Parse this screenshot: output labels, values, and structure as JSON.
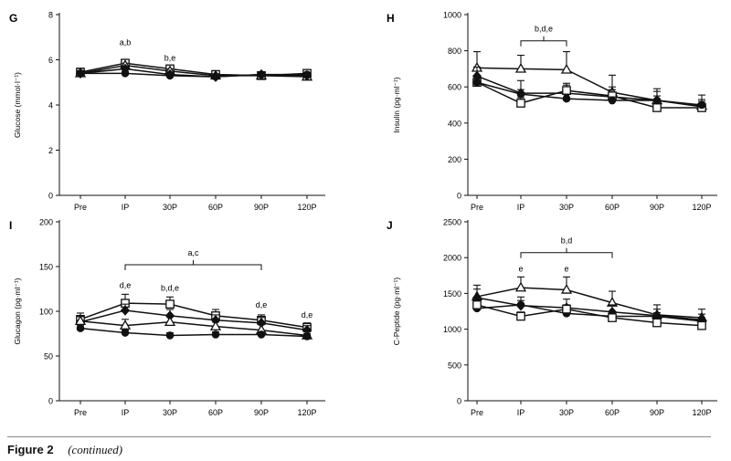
{
  "figure": {
    "label": "Figure 2",
    "note": "(continued)"
  },
  "chart_data": [
    {
      "panel": "G",
      "type": "line",
      "ylabel": "Glucose (mmol·l⁻¹)",
      "ylim": [
        0,
        8
      ],
      "yticks": [
        0,
        2,
        4,
        6,
        8
      ],
      "categories": [
        "Pre",
        "IP",
        "30P",
        "60P",
        "90P",
        "120P"
      ],
      "series": [
        {
          "marker": "square-open",
          "values": [
            5.45,
            5.85,
            5.6,
            5.35,
            5.3,
            5.4
          ],
          "errors": [
            0.18,
            0.15,
            0.12,
            0.1,
            0.08,
            0.1
          ]
        },
        {
          "marker": "triangle-open",
          "values": [
            5.4,
            5.75,
            5.5,
            5.3,
            5.3,
            5.25
          ],
          "errors": [
            0.12,
            0.1,
            0.1,
            0.08,
            0.08,
            0.08
          ]
        },
        {
          "marker": "diamond-filled",
          "values": [
            5.4,
            5.6,
            5.35,
            5.25,
            5.35,
            5.3
          ],
          "errors": [
            0.1,
            0.1,
            0.08,
            0.08,
            0.06,
            0.08
          ]
        },
        {
          "marker": "circle-filled",
          "values": [
            5.4,
            5.4,
            5.3,
            5.25,
            5.35,
            5.35
          ],
          "errors": [
            0.08,
            0.08,
            0.06,
            0.06,
            0.06,
            0.06
          ]
        }
      ],
      "annotations": [
        {
          "text": "a,b",
          "x": "IP",
          "y": 6.65
        },
        {
          "text": "b,e",
          "x": "30P",
          "y": 5.95
        }
      ],
      "brackets": []
    },
    {
      "panel": "H",
      "type": "line",
      "ylabel": "Insulin (pg·ml⁻¹)",
      "ylim": [
        0,
        1000
      ],
      "yticks": [
        0,
        200,
        400,
        600,
        800,
        1000
      ],
      "categories": [
        "Pre",
        "IP",
        "30P",
        "60P",
        "90P",
        "120P"
      ],
      "series": [
        {
          "marker": "triangle-open",
          "values": [
            705,
            700,
            695,
            570,
            525,
            495
          ],
          "errors": [
            90,
            75,
            100,
            95,
            65,
            60
          ]
        },
        {
          "marker": "diamond-filled",
          "values": [
            660,
            565,
            565,
            545,
            525,
            490
          ],
          "errors": [
            50,
            70,
            55,
            55,
            50,
            40
          ]
        },
        {
          "marker": "square-open",
          "values": [
            625,
            510,
            580,
            550,
            485,
            485
          ],
          "errors": [
            20,
            30,
            30,
            35,
            30,
            25
          ]
        },
        {
          "marker": "circle-filled",
          "values": [
            625,
            560,
            535,
            525,
            525,
            500
          ],
          "errors": [
            20,
            25,
            25,
            20,
            25,
            20
          ]
        }
      ],
      "annotations": [],
      "brackets": [
        {
          "from": "IP",
          "to": "30P",
          "y": 855,
          "text": "b,d,e"
        }
      ]
    },
    {
      "panel": "I",
      "type": "line",
      "ylabel": "Glucagon (pg·ml⁻¹)",
      "ylim": [
        0,
        200
      ],
      "yticks": [
        0,
        50,
        100,
        150,
        200
      ],
      "categories": [
        "Pre",
        "IP",
        "30P",
        "60P",
        "90P",
        "120P"
      ],
      "series": [
        {
          "marker": "square-open",
          "values": [
            91,
            109,
            108,
            95,
            90,
            82
          ],
          "errors": [
            7,
            10,
            8,
            7,
            6,
            5
          ]
        },
        {
          "marker": "diamond-filled",
          "values": [
            88,
            101,
            95,
            90,
            87,
            79
          ],
          "errors": [
            6,
            7,
            7,
            6,
            6,
            5
          ]
        },
        {
          "marker": "triangle-open",
          "values": [
            89,
            84,
            88,
            83,
            79,
            73
          ],
          "errors": [
            6,
            7,
            6,
            5,
            6,
            4
          ]
        },
        {
          "marker": "circle-filled",
          "values": [
            81,
            76,
            73,
            74,
            74,
            72
          ],
          "errors": [
            3,
            3,
            3,
            3,
            3,
            3
          ]
        }
      ],
      "annotations": [
        {
          "text": "d,e",
          "x": "IP",
          "y": 126
        },
        {
          "text": "b,d,e",
          "x": "30P",
          "y": 123
        },
        {
          "text": "d,e",
          "x": "90P",
          "y": 104
        },
        {
          "text": "d,e",
          "x": "120P",
          "y": 93
        }
      ],
      "brackets": [
        {
          "from": "IP",
          "to": "90P",
          "y": 152,
          "text": "a,c"
        }
      ]
    },
    {
      "panel": "J",
      "type": "line",
      "ylabel": "C-Peptide (pg·ml⁻¹)",
      "ylim": [
        0,
        2500
      ],
      "yticks": [
        0,
        500,
        1000,
        1500,
        2000,
        2500
      ],
      "categories": [
        "Pre",
        "IP",
        "30P",
        "60P",
        "90P",
        "120P"
      ],
      "series": [
        {
          "marker": "triangle-open",
          "values": [
            1455,
            1580,
            1550,
            1370,
            1200,
            1160
          ],
          "errors": [
            160,
            150,
            180,
            160,
            140,
            120
          ]
        },
        {
          "marker": "diamond-filled",
          "values": [
            1440,
            1330,
            1300,
            1240,
            1190,
            1130
          ],
          "errors": [
            120,
            120,
            120,
            100,
            90,
            80
          ]
        },
        {
          "marker": "circle-filled",
          "values": [
            1290,
            1340,
            1220,
            1180,
            1180,
            1110
          ],
          "errors": [
            50,
            60,
            60,
            50,
            50,
            50
          ]
        },
        {
          "marker": "square-open",
          "values": [
            1340,
            1180,
            1280,
            1160,
            1090,
            1050
          ],
          "errors": [
            60,
            60,
            60,
            50,
            50,
            40
          ]
        }
      ],
      "annotations": [
        {
          "text": "e",
          "x": "IP",
          "y": 1805
        },
        {
          "text": "e",
          "x": "30P",
          "y": 1805
        }
      ],
      "brackets": [
        {
          "from": "IP",
          "to": "60P",
          "y": 2070,
          "text": "b,d"
        }
      ]
    }
  ]
}
